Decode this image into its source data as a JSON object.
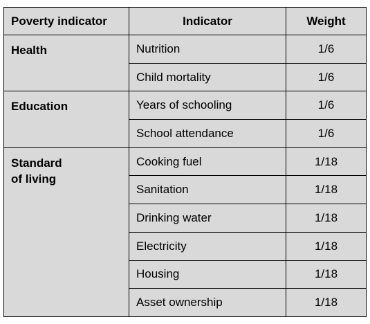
{
  "table": {
    "headers": [
      "Poverty indicator",
      "Indicator",
      "Weight"
    ],
    "groups": [
      {
        "name": "Health",
        "rows": [
          {
            "indicator": "Nutrition",
            "weight": "1/6"
          },
          {
            "indicator": "Child mortality",
            "weight": "1/6"
          }
        ]
      },
      {
        "name": "Education",
        "rows": [
          {
            "indicator": "Years of schooling",
            "weight": "1/6"
          },
          {
            "indicator": "School attendance",
            "weight": "1/6"
          }
        ]
      },
      {
        "name": "Standard\nof living",
        "rows": [
          {
            "indicator": "Cooking fuel",
            "weight": "1/18"
          },
          {
            "indicator": "Sanitation",
            "weight": "1/18"
          },
          {
            "indicator": "Drinking water",
            "weight": "1/18"
          },
          {
            "indicator": "Electricity",
            "weight": "1/18"
          },
          {
            "indicator": "Housing",
            "weight": "1/18"
          },
          {
            "indicator": "Asset ownership",
            "weight": "1/18"
          }
        ]
      }
    ]
  }
}
